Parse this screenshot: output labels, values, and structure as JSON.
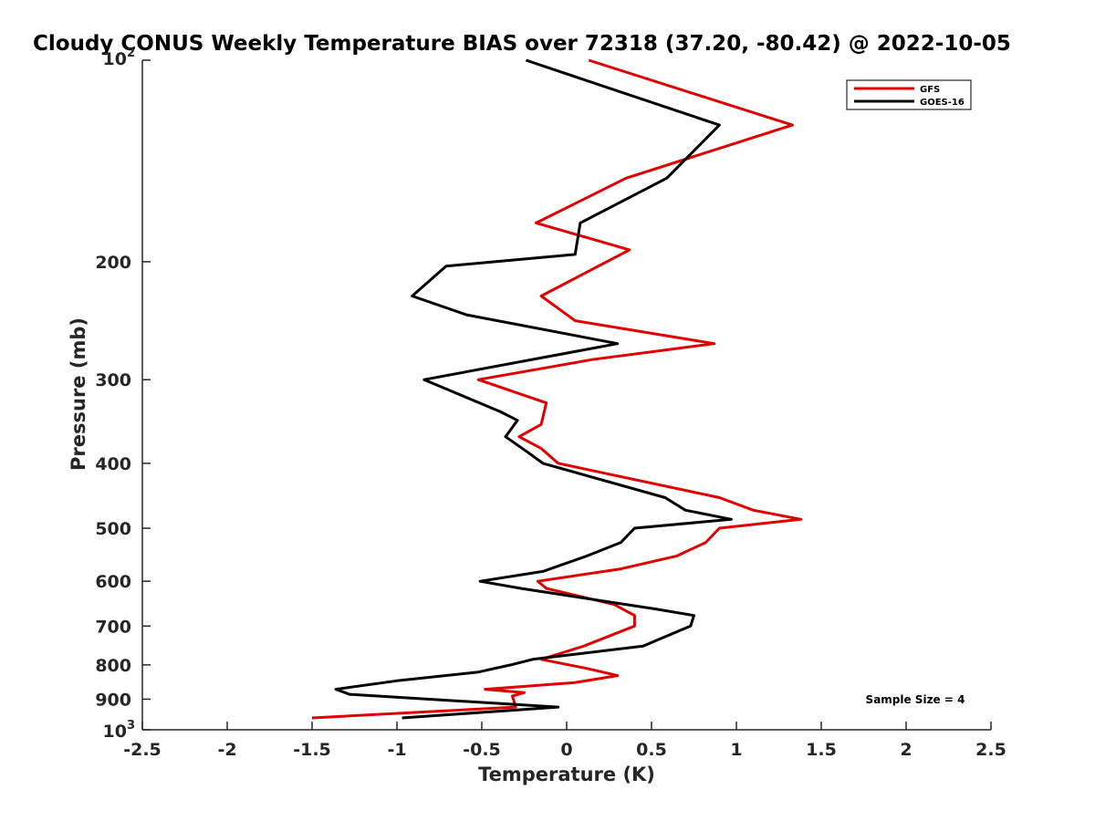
{
  "chart_data": {
    "type": "line",
    "title": "Cloudy CONUS Weekly Temperature BIAS over 72318 (37.20, -80.42) @ 2022-10-05",
    "xlabel": "Temperature (K)",
    "ylabel": "Pressure (mb)",
    "xlim": [
      -2.5,
      2.5
    ],
    "ylim": [
      100,
      1000
    ],
    "y_scale": "log",
    "y_reversed": true,
    "x_ticks": [
      "-2.5",
      "-2",
      "-1.5",
      "-1",
      "-0.5",
      "0",
      "0.5",
      "1",
      "1.5",
      "2",
      "2.5"
    ],
    "y_ticks": [
      {
        "value": 100,
        "base": "10",
        "exp": "2"
      },
      {
        "value": 200,
        "label": "200"
      },
      {
        "value": 300,
        "label": "300"
      },
      {
        "value": 400,
        "label": "400"
      },
      {
        "value": 500,
        "label": "500"
      },
      {
        "value": 600,
        "label": "600"
      },
      {
        "value": 700,
        "label": "700"
      },
      {
        "value": 800,
        "label": "800"
      },
      {
        "value": 900,
        "label": "900"
      },
      {
        "value": 1000,
        "base": "10",
        "exp": "3"
      }
    ],
    "legend_position": "top-right",
    "annotation": "Sample Size = 4",
    "series": [
      {
        "name": "GFS",
        "color": "#e00000",
        "points": [
          [
            0.13,
            100
          ],
          [
            1.33,
            125
          ],
          [
            0.35,
            150
          ],
          [
            -0.18,
            175
          ],
          [
            0.37,
            192
          ],
          [
            -0.15,
            225
          ],
          [
            0.05,
            245
          ],
          [
            0.87,
            265
          ],
          [
            0.15,
            280
          ],
          [
            -0.52,
            300
          ],
          [
            -0.12,
            325
          ],
          [
            -0.15,
            350
          ],
          [
            -0.28,
            365
          ],
          [
            -0.15,
            380
          ],
          [
            -0.05,
            400
          ],
          [
            0.9,
            450
          ],
          [
            1.1,
            470
          ],
          [
            1.38,
            485
          ],
          [
            0.9,
            500
          ],
          [
            0.82,
            525
          ],
          [
            0.65,
            550
          ],
          [
            0.32,
            575
          ],
          [
            -0.17,
            600
          ],
          [
            -0.12,
            615
          ],
          [
            0.28,
            650
          ],
          [
            0.4,
            675
          ],
          [
            0.4,
            700
          ],
          [
            0.1,
            750
          ],
          [
            -0.15,
            785
          ],
          [
            0.12,
            810
          ],
          [
            0.3,
            830
          ],
          [
            0.05,
            850
          ],
          [
            -0.48,
            870
          ],
          [
            -0.25,
            880
          ],
          [
            -0.32,
            890
          ],
          [
            -0.3,
            925
          ],
          [
            -1.5,
            960
          ]
        ]
      },
      {
        "name": "GOES-16",
        "color": "#000000",
        "points": [
          [
            -0.24,
            100
          ],
          [
            0.9,
            125
          ],
          [
            0.59,
            150
          ],
          [
            0.08,
            175
          ],
          [
            0.05,
            195
          ],
          [
            -0.71,
            203
          ],
          [
            -0.91,
            225
          ],
          [
            -0.59,
            240
          ],
          [
            0.3,
            265
          ],
          [
            -0.84,
            300
          ],
          [
            -0.39,
            335
          ],
          [
            -0.29,
            345
          ],
          [
            -0.36,
            365
          ],
          [
            -0.23,
            385
          ],
          [
            -0.14,
            400
          ],
          [
            0.58,
            450
          ],
          [
            0.7,
            470
          ],
          [
            0.97,
            485
          ],
          [
            0.4,
            500
          ],
          [
            0.32,
            525
          ],
          [
            0.12,
            550
          ],
          [
            -0.14,
            580
          ],
          [
            -0.51,
            600
          ],
          [
            -0.27,
            615
          ],
          [
            0.52,
            660
          ],
          [
            0.75,
            675
          ],
          [
            0.73,
            700
          ],
          [
            0.45,
            750
          ],
          [
            -0.2,
            785
          ],
          [
            -0.33,
            800
          ],
          [
            -0.52,
            820
          ],
          [
            -1.0,
            845
          ],
          [
            -1.36,
            870
          ],
          [
            -1.28,
            885
          ],
          [
            -0.05,
            925
          ],
          [
            -0.97,
            960
          ]
        ]
      }
    ]
  }
}
